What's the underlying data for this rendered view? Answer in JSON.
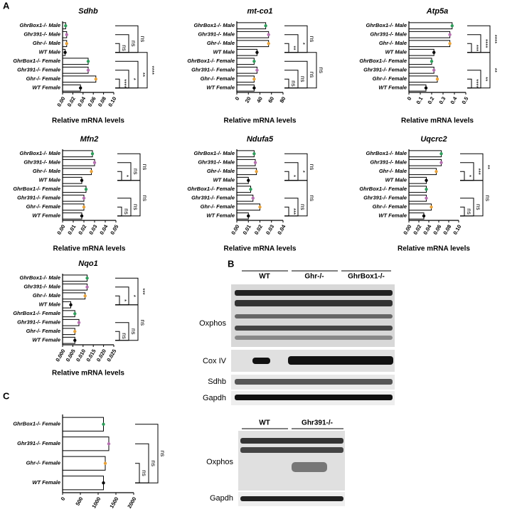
{
  "panel_labels": [
    "A",
    "B",
    "C"
  ],
  "chart_data": [
    {
      "type": "bar",
      "orientation": "horizontal",
      "title": "Sdhb",
      "xlabel": "Relative mRNA levels",
      "categories": [
        "GhrBox1-/- Male",
        "Ghr391-/- Male",
        "Ghr-/- Male",
        "WT Male",
        "GhrBox1-/- Female",
        "Ghr391-/- Female",
        "Ghr-/- Female",
        "WT Female"
      ],
      "values": [
        0.006,
        0.008,
        0.008,
        0.005,
        0.05,
        0.05,
        0.065,
        0.035
      ],
      "colors": [
        "#2e9e5b",
        "#b56fb0",
        "#e8a23a",
        "#000000",
        "#2e9e5b",
        "#b56fb0",
        "#e8a23a",
        "#000000"
      ],
      "xlim": [
        0,
        0.1
      ],
      "xticks": [
        {
          "value": 0,
          "label": "0.00"
        },
        {
          "value": 0.02,
          "label": "0.02"
        },
        {
          "value": 0.04,
          "label": "0.04"
        },
        {
          "value": 0.06,
          "label": "0.06"
        },
        {
          "value": 0.08,
          "label": "0.08"
        },
        {
          "value": 0.1,
          "label": "0.10"
        }
      ],
      "brackets": [
        {
          "from": 2,
          "to": 3,
          "label": "ns"
        },
        {
          "from": 1,
          "to": 3,
          "label": "ns"
        },
        {
          "from": 0,
          "to": 3,
          "label": "ns"
        },
        {
          "from": 6,
          "to": 7,
          "label": "****"
        },
        {
          "from": 5,
          "to": 7,
          "label": "*"
        },
        {
          "from": 4,
          "to": 7,
          "label": "**"
        },
        {
          "from": 3,
          "to": 7,
          "label": "****"
        }
      ]
    },
    {
      "type": "bar",
      "orientation": "horizontal",
      "title": "mt-co1",
      "xlabel": "Relative mRNA levels",
      "categories": [
        "GhrBox1-/- Male",
        "Ghr391-/- Male",
        "Ghr-/- Male",
        "WT Male",
        "GhrBox1-/- Female",
        "Ghr391-/- Female",
        "Ghr-/- Female",
        "WT Female"
      ],
      "values": [
        50,
        55,
        55,
        35,
        30,
        35,
        30,
        30
      ],
      "colors": [
        "#2e9e5b",
        "#b56fb0",
        "#e8a23a",
        "#000000",
        "#2e9e5b",
        "#b56fb0",
        "#e8a23a",
        "#000000"
      ],
      "xlim": [
        0,
        80
      ],
      "xticks": [
        0,
        20,
        40,
        60,
        80
      ],
      "brackets": [
        {
          "from": 2,
          "to": 3,
          "label": "**"
        },
        {
          "from": 1,
          "to": 3,
          "label": "*"
        },
        {
          "from": 0,
          "to": 3,
          "label": "ns"
        },
        {
          "from": 6,
          "to": 7,
          "label": "ns"
        },
        {
          "from": 5,
          "to": 7,
          "label": "ns"
        },
        {
          "from": 4,
          "to": 7,
          "label": "ns"
        },
        {
          "from": 3,
          "to": 7,
          "label": "ns"
        }
      ]
    },
    {
      "type": "bar",
      "orientation": "horizontal",
      "title": "Atp5a",
      "xlabel": "Relative mRNA levels",
      "categories": [
        "GhrBox1-/- Male",
        "Ghr391-/- Male",
        "Ghr-/- Male",
        "WT Male",
        "GhrBox1-/- Female",
        "Ghr391-/- Female",
        "Ghr-/- Female",
        "WT Female"
      ],
      "values": [
        0.38,
        0.36,
        0.36,
        0.22,
        0.2,
        0.22,
        0.25,
        0.15
      ],
      "colors": [
        "#2e9e5b",
        "#b56fb0",
        "#e8a23a",
        "#000000",
        "#2e9e5b",
        "#b56fb0",
        "#e8a23a",
        "#000000"
      ],
      "xlim": [
        0,
        0.5
      ],
      "xticks": [
        0,
        0.1,
        0.2,
        0.3,
        0.4,
        0.5
      ],
      "brackets": [
        {
          "from": 2,
          "to": 3,
          "label": "***"
        },
        {
          "from": 1,
          "to": 3,
          "label": "****"
        },
        {
          "from": 0,
          "to": 3,
          "label": "****"
        },
        {
          "from": 6,
          "to": 7,
          "label": "****"
        },
        {
          "from": 5,
          "to": 7,
          "label": "**"
        },
        {
          "from": 3,
          "to": 7,
          "label": "**"
        }
      ]
    },
    {
      "type": "bar",
      "orientation": "horizontal",
      "title": "Mfn2",
      "xlabel": "Relative mRNA levels",
      "categories": [
        "GhrBox1-/- Male",
        "Ghr391-/- Male",
        "Ghr-/- Male",
        "WT Male",
        "GhrBox1-/- Female",
        "Ghr391-/- Female",
        "Ghr-/- Female",
        "WT Female"
      ],
      "values": [
        0.028,
        0.03,
        0.027,
        0.018,
        0.022,
        0.02,
        0.02,
        0.018
      ],
      "colors": [
        "#2e9e5b",
        "#b56fb0",
        "#e8a23a",
        "#000000",
        "#2e9e5b",
        "#b56fb0",
        "#e8a23a",
        "#000000"
      ],
      "xlim": [
        0,
        0.05
      ],
      "xticks": [
        {
          "value": 0,
          "label": "0.00"
        },
        0.01,
        0.02,
        0.03,
        0.04,
        0.05
      ],
      "brackets": [
        {
          "from": 2,
          "to": 3,
          "label": "*"
        },
        {
          "from": 1,
          "to": 3,
          "label": "ns"
        },
        {
          "from": 0,
          "to": 3,
          "label": "ns"
        },
        {
          "from": 6,
          "to": 7,
          "label": "ns"
        },
        {
          "from": 5,
          "to": 7,
          "label": "ns"
        },
        {
          "from": 3,
          "to": 7,
          "label": "ns"
        }
      ]
    },
    {
      "type": "bar",
      "orientation": "horizontal",
      "title": "Ndufa5",
      "xlabel": "Relative mRNA levels",
      "categories": [
        "GhrBox1-/- Male",
        "Ghr391-/- Male",
        "Ghr-/- Male",
        "WT Male",
        "GhrBox1-/- Female",
        "Ghr391-/- Female",
        "Ghr-/- Female",
        "WT Female"
      ],
      "values": [
        0.015,
        0.016,
        0.017,
        0.01,
        0.012,
        0.014,
        0.02,
        0.01
      ],
      "colors": [
        "#2e9e5b",
        "#b56fb0",
        "#e8a23a",
        "#000000",
        "#2e9e5b",
        "#b56fb0",
        "#e8a23a",
        "#000000"
      ],
      "xlim": [
        0,
        0.04
      ],
      "xticks": [
        {
          "value": 0,
          "label": "0.00"
        },
        0.01,
        0.02,
        0.03,
        0.04
      ],
      "brackets": [
        {
          "from": 2,
          "to": 3,
          "label": "*"
        },
        {
          "from": 1,
          "to": 3,
          "label": "*"
        },
        {
          "from": 0,
          "to": 3,
          "label": "ns"
        },
        {
          "from": 6,
          "to": 7,
          "label": "***"
        },
        {
          "from": 5,
          "to": 7,
          "label": "ns"
        },
        {
          "from": 3,
          "to": 7,
          "label": "ns"
        }
      ]
    },
    {
      "type": "bar",
      "orientation": "horizontal",
      "title": "Uqcrc2",
      "xlabel": "Relative mRNA levels",
      "categories": [
        "GhrBox1-/- Male",
        "Ghr391-/- Male",
        "Ghr-/- Male",
        "WT Male",
        "GhrBox1-/- Female",
        "Ghr391-/- Female",
        "Ghr-/- Female",
        "WT Female"
      ],
      "values": [
        0.065,
        0.065,
        0.055,
        0.035,
        0.035,
        0.035,
        0.045,
        0.03
      ],
      "colors": [
        "#2e9e5b",
        "#b56fb0",
        "#e8a23a",
        "#000000",
        "#2e9e5b",
        "#b56fb0",
        "#e8a23a",
        "#000000"
      ],
      "xlim": [
        0,
        0.1
      ],
      "xticks": [
        {
          "value": 0,
          "label": "0.00"
        },
        {
          "value": 0.02,
          "label": "0.02"
        },
        {
          "value": 0.04,
          "label": "0.04"
        },
        {
          "value": 0.06,
          "label": "0.06"
        },
        {
          "value": 0.08,
          "label": "0.08"
        },
        {
          "value": 0.1,
          "label": "0.10"
        }
      ],
      "brackets": [
        {
          "from": 2,
          "to": 3,
          "label": "*"
        },
        {
          "from": 1,
          "to": 3,
          "label": "***"
        },
        {
          "from": 0,
          "to": 3,
          "label": "**"
        },
        {
          "from": 6,
          "to": 7,
          "label": "ns"
        },
        {
          "from": 5,
          "to": 7,
          "label": "ns"
        },
        {
          "from": 3,
          "to": 7,
          "label": "ns"
        }
      ]
    },
    {
      "type": "bar",
      "orientation": "horizontal",
      "title": "Nqo1",
      "xlabel": "Relative mRNA levels",
      "categories": [
        "GhrBox1-/- Male",
        "Ghr391-/- Male",
        "Ghr-/- Male",
        "WT Male",
        "GhrBox1-/- Female",
        "Ghr391-/- Female",
        "Ghr-/- Female",
        "WT Female"
      ],
      "values": [
        0.012,
        0.012,
        0.011,
        0.004,
        0.006,
        0.008,
        0.006,
        0.006
      ],
      "colors": [
        "#2e9e5b",
        "#b56fb0",
        "#e8a23a",
        "#000000",
        "#2e9e5b",
        "#b56fb0",
        "#e8a23a",
        "#000000"
      ],
      "xlim": [
        0,
        0.025
      ],
      "xticks": [
        {
          "value": 0,
          "label": "0.000"
        },
        0.005,
        {
          "value": 0.01,
          "label": "0.010"
        },
        0.015,
        {
          "value": 0.02,
          "label": "0.020"
        },
        0.025
      ],
      "brackets": [
        {
          "from": 2,
          "to": 3,
          "label": "*"
        },
        {
          "from": 1,
          "to": 3,
          "label": "*"
        },
        {
          "from": 0,
          "to": 3,
          "label": "***"
        },
        {
          "from": 6,
          "to": 7,
          "label": "ns"
        },
        {
          "from": 5,
          "to": 7,
          "label": "ns"
        },
        {
          "from": 3,
          "to": 7,
          "label": "ns"
        }
      ]
    },
    {
      "type": "bar",
      "orientation": "horizontal",
      "xlabel": "mtDNA/nDNA",
      "categories": [
        "GhrBox1-/- Female",
        "Ghr391-/- Female",
        "Ghr-/- Female",
        "WT Female"
      ],
      "values": [
        1150,
        1300,
        1200,
        1150
      ],
      "colors": [
        "#2e9e5b",
        "#b56fb0",
        "#e8a23a",
        "#000000"
      ],
      "xlim": [
        0,
        2000
      ],
      "xticks": [
        0,
        500,
        1000,
        1500,
        2000
      ],
      "brackets": [
        {
          "from": 2,
          "to": 3,
          "label": "ns"
        },
        {
          "from": 1,
          "to": 3,
          "label": "ns"
        },
        {
          "from": 0,
          "to": 3,
          "label": "ns"
        }
      ]
    }
  ],
  "blots": {
    "top_groups": [
      "WT",
      "Ghr-/-",
      "GhrBox1-/-"
    ],
    "top_rows": [
      "Oxphos",
      "Cox IV",
      "Sdhb",
      "Gapdh"
    ],
    "bottom_groups": [
      "WT",
      "Ghr391-/-"
    ],
    "bottom_rows": [
      "Oxphos",
      "Gapdh"
    ]
  }
}
